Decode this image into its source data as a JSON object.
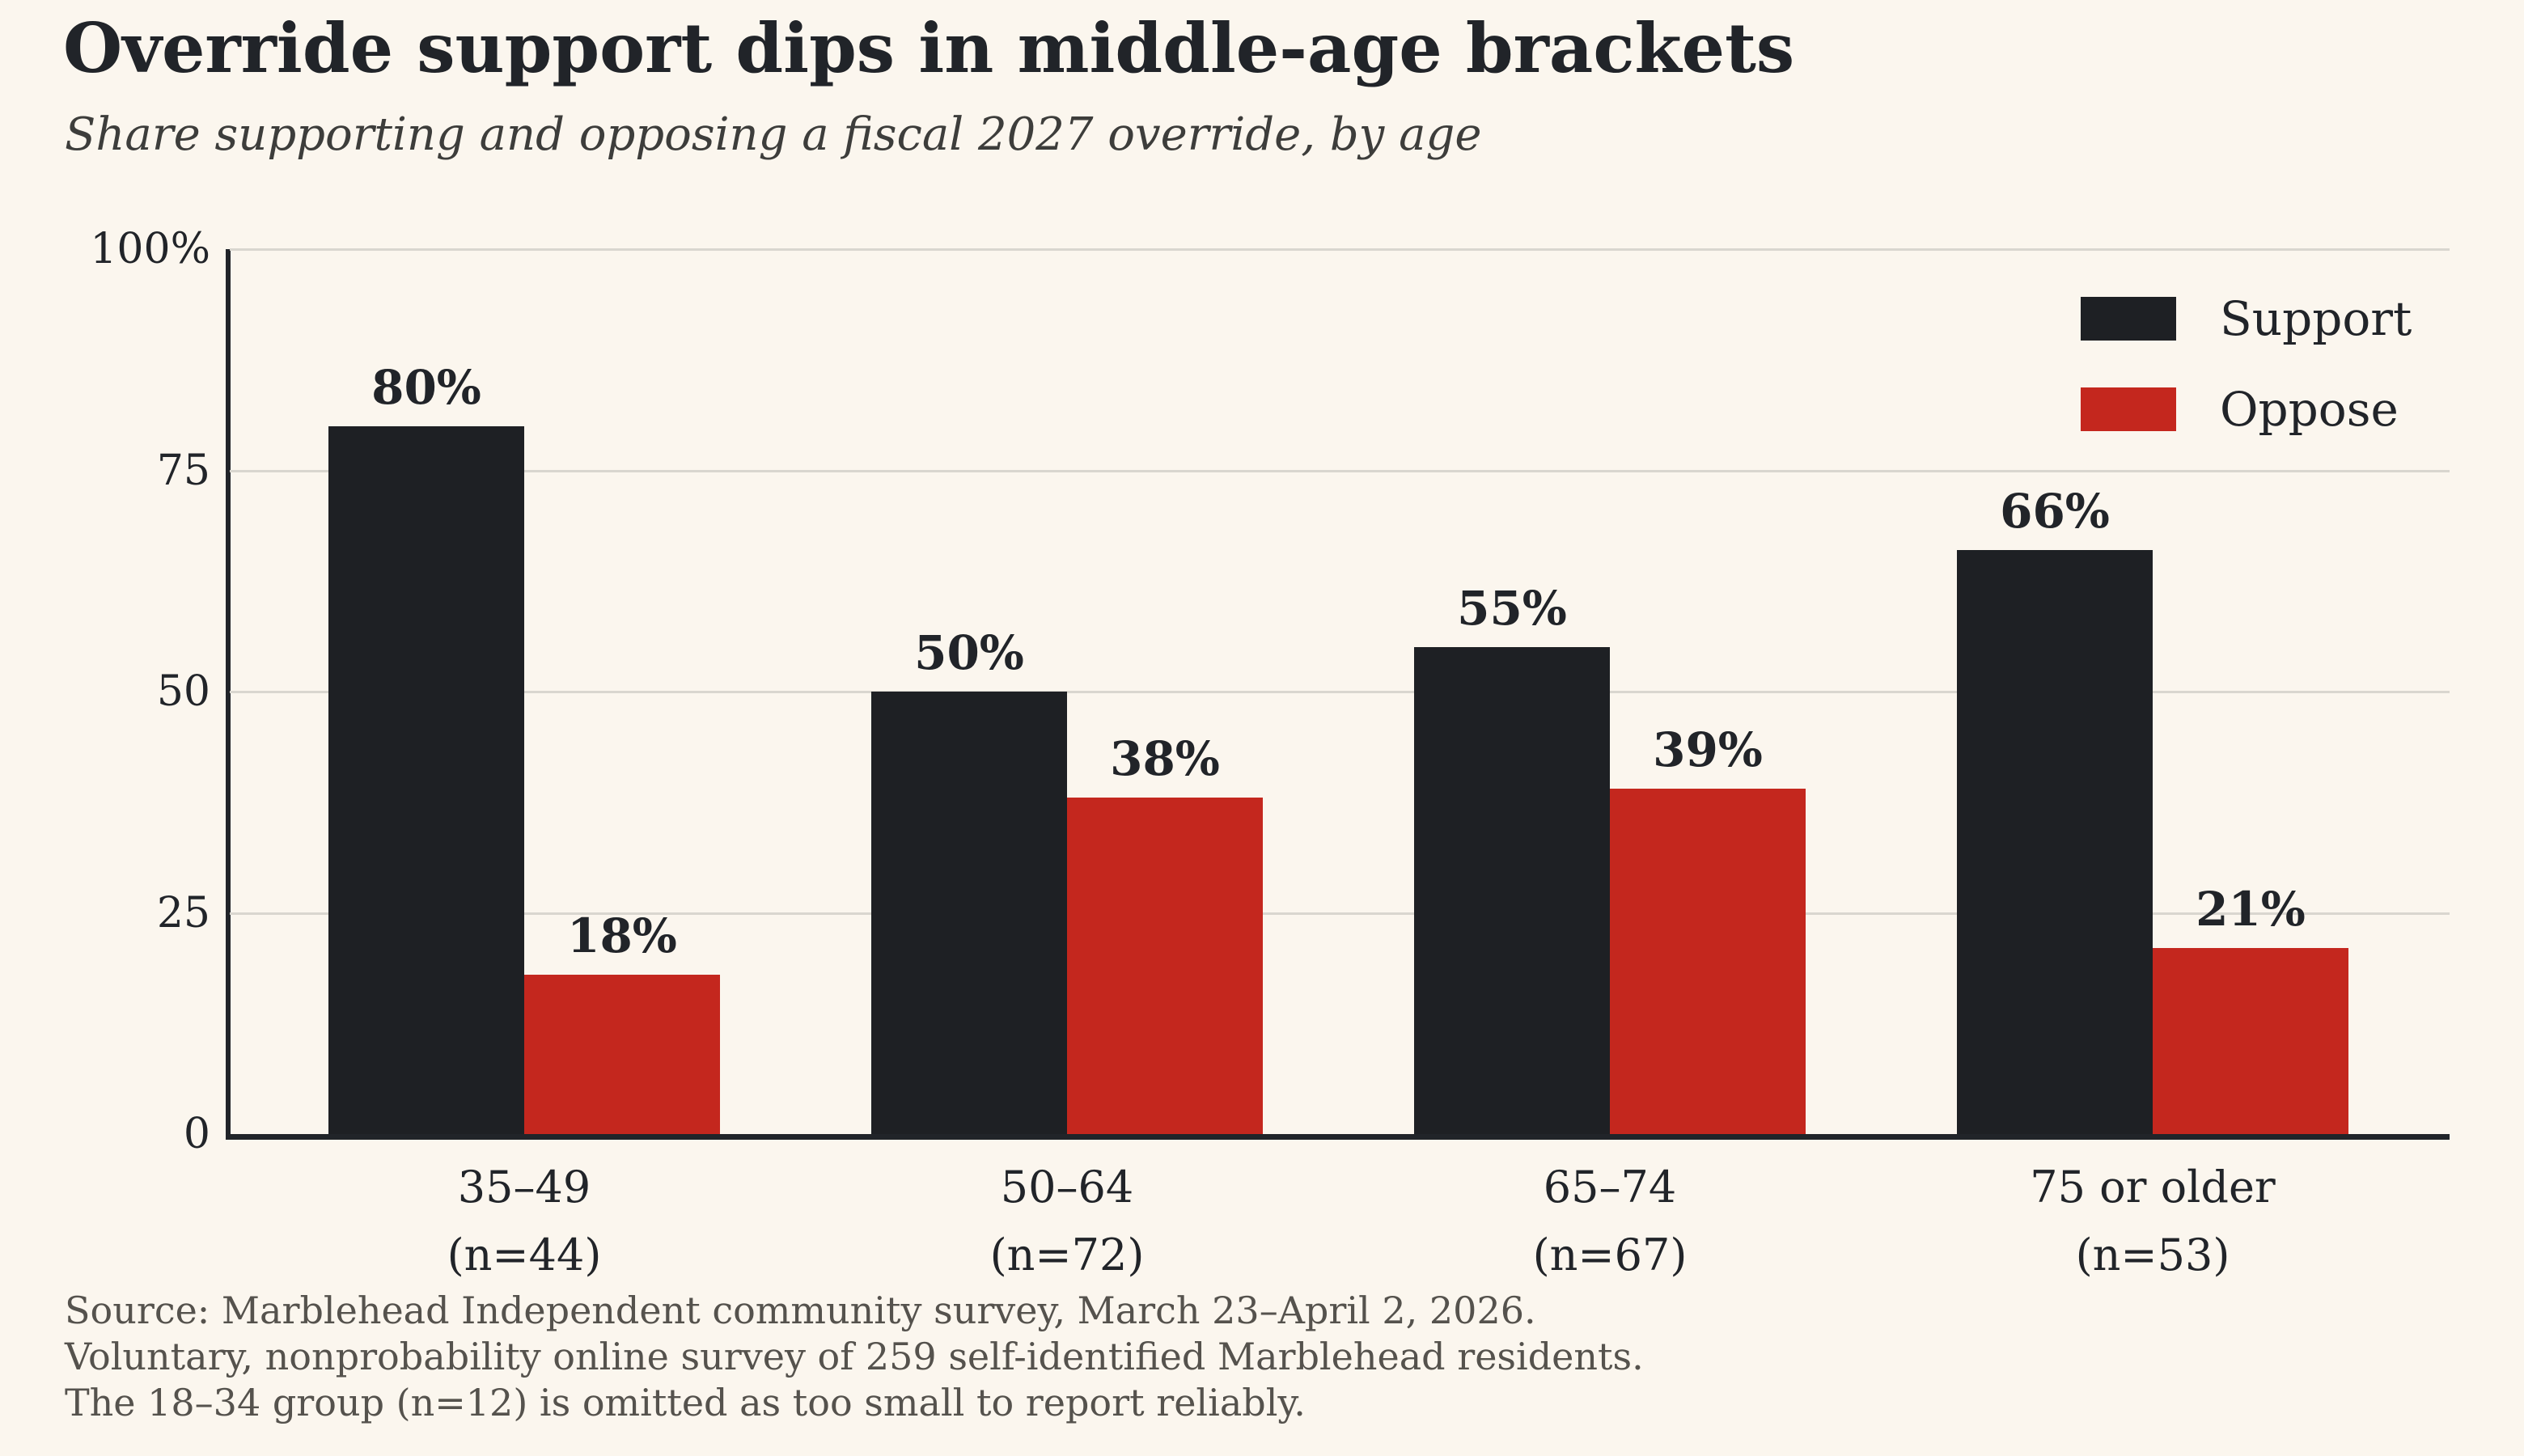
{
  "colors": {
    "background": "#fbf6ee",
    "ink": "#212429",
    "subtitle_text": "#3d3d3b",
    "source_text": "#55524d",
    "gridline": "#d9d6cf",
    "support": "#1e2024",
    "oppose": "#c4271e"
  },
  "chart_data": {
    "type": "bar",
    "title": "Override support dips in middle-age brackets",
    "subtitle": "Share supporting and opposing a fiscal 2027 override, by age",
    "categories": [
      "35–49",
      "50–64",
      "65–74",
      "75 or older"
    ],
    "category_sublabels": [
      "(n=44)",
      "(n=72)",
      "(n=67)",
      "(n=53)"
    ],
    "series": [
      {
        "name": "Support",
        "color_key": "support",
        "values": [
          80,
          50,
          55,
          66
        ]
      },
      {
        "name": "Oppose",
        "color_key": "oppose",
        "values": [
          18,
          38,
          39,
          21
        ]
      }
    ],
    "value_label_suffix": "%",
    "y_ticks": [
      {
        "value": 100,
        "label": "100%"
      },
      {
        "value": 75,
        "label": "75"
      },
      {
        "value": 50,
        "label": "50"
      },
      {
        "value": 25,
        "label": "25"
      },
      {
        "value": 0,
        "label": "0"
      }
    ],
    "ylim": [
      0,
      100
    ],
    "grid": "horizontal",
    "legend_position": "top-right"
  },
  "source_lines": [
    "Source: Marblehead Independent community survey, March 23–April 2, 2026.",
    "Voluntary, nonprobability online survey of 259 self-identified Marblehead residents.",
    "The 18–34 group (n=12) is omitted as too small to report reliably."
  ]
}
